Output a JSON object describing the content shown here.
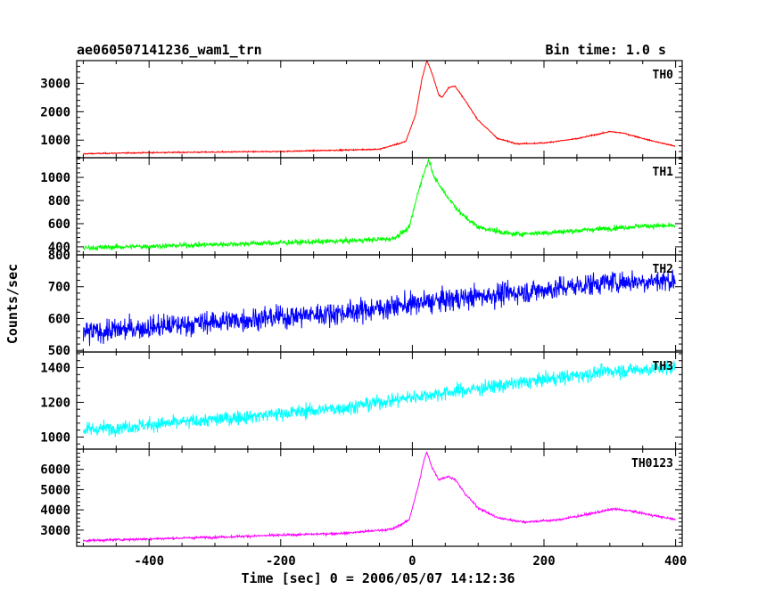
{
  "chart_data": {
    "type": "line",
    "title": "ae060507141236_wam1_trn",
    "subtitle": "Bin time: 1.0 s",
    "xlabel": "Time [sec] 0 = 2006/05/07 14:12:36",
    "ylabel": "Counts/sec",
    "xlim": [
      -510,
      410
    ],
    "x_ticks": [
      -400,
      -200,
      0,
      200,
      400
    ],
    "grid": false,
    "panels": [
      {
        "name": "TH0",
        "color": "#ff0000",
        "ylim": [
          380,
          3800
        ],
        "y_ticks": [
          1000,
          2000,
          3000
        ],
        "noise": 20,
        "points": [
          [
            -500,
            520
          ],
          [
            -400,
            560
          ],
          [
            -200,
            600
          ],
          [
            -50,
            680
          ],
          [
            -10,
            950
          ],
          [
            5,
            1900
          ],
          [
            15,
            3200
          ],
          [
            22,
            3800
          ],
          [
            30,
            3350
          ],
          [
            40,
            2600
          ],
          [
            45,
            2500
          ],
          [
            55,
            2850
          ],
          [
            65,
            2900
          ],
          [
            80,
            2400
          ],
          [
            100,
            1700
          ],
          [
            130,
            1050
          ],
          [
            160,
            870
          ],
          [
            200,
            900
          ],
          [
            250,
            1050
          ],
          [
            300,
            1300
          ],
          [
            320,
            1250
          ],
          [
            360,
            1000
          ],
          [
            400,
            780
          ]
        ]
      },
      {
        "name": "TH1",
        "color": "#00ff00",
        "ylim": [
          330,
          1170
        ],
        "y_ticks": [
          400,
          600,
          800,
          1000
        ],
        "noise": 22,
        "points": [
          [
            -500,
            390
          ],
          [
            -300,
            420
          ],
          [
            -100,
            450
          ],
          [
            -30,
            470
          ],
          [
            -5,
            560
          ],
          [
            10,
            900
          ],
          [
            20,
            1080
          ],
          [
            25,
            1150
          ],
          [
            35,
            980
          ],
          [
            55,
            820
          ],
          [
            75,
            680
          ],
          [
            100,
            570
          ],
          [
            150,
            510
          ],
          [
            200,
            520
          ],
          [
            250,
            540
          ],
          [
            300,
            560
          ],
          [
            350,
            580
          ],
          [
            400,
            580
          ]
        ]
      },
      {
        "name": "TH2",
        "color": "#0000ff",
        "ylim": [
          495,
          800
        ],
        "y_ticks": [
          500,
          600,
          700,
          800
        ],
        "noise": 35,
        "points": [
          [
            -500,
            555
          ],
          [
            -300,
            590
          ],
          [
            -100,
            620
          ],
          [
            0,
            645
          ],
          [
            100,
            670
          ],
          [
            200,
            690
          ],
          [
            300,
            715
          ],
          [
            400,
            720
          ]
        ]
      },
      {
        "name": "TH3",
        "color": "#00ffff",
        "ylim": [
          930,
          1490
        ],
        "y_ticks": [
          1000,
          1200,
          1400
        ],
        "noise": 40,
        "points": [
          [
            -500,
            1040
          ],
          [
            -300,
            1100
          ],
          [
            -100,
            1170
          ],
          [
            0,
            1230
          ],
          [
            100,
            1280
          ],
          [
            200,
            1330
          ],
          [
            300,
            1380
          ],
          [
            400,
            1400
          ]
        ]
      },
      {
        "name": "TH0123",
        "color": "#ff00ff",
        "ylim": [
          2200,
          7000
        ],
        "y_ticks": [
          3000,
          4000,
          5000,
          6000
        ],
        "noise": 55,
        "points": [
          [
            -500,
            2480
          ],
          [
            -300,
            2650
          ],
          [
            -100,
            2850
          ],
          [
            -30,
            3050
          ],
          [
            -5,
            3500
          ],
          [
            10,
            5300
          ],
          [
            18,
            6500
          ],
          [
            22,
            6850
          ],
          [
            30,
            6100
          ],
          [
            40,
            5500
          ],
          [
            55,
            5650
          ],
          [
            65,
            5500
          ],
          [
            80,
            4800
          ],
          [
            100,
            4100
          ],
          [
            130,
            3600
          ],
          [
            170,
            3400
          ],
          [
            220,
            3500
          ],
          [
            270,
            3800
          ],
          [
            305,
            4050
          ],
          [
            330,
            3950
          ],
          [
            370,
            3700
          ],
          [
            400,
            3520
          ]
        ]
      }
    ]
  }
}
